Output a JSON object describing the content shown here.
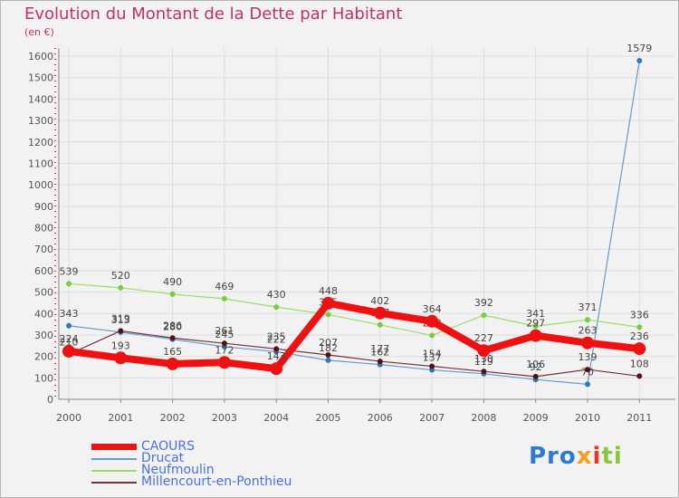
{
  "header": {
    "title": "Evolution du Montant de la Dette par Habitant",
    "unit": "(en €)"
  },
  "logo": {
    "letters": [
      "Pro",
      "x",
      "i",
      "ti"
    ],
    "colors": [
      "#2c7bd0",
      "#f0a020",
      "#e23a2a",
      "#8cc43c"
    ]
  },
  "chart_data": {
    "type": "line",
    "x": [
      "2000",
      "2001",
      "2002",
      "2003",
      "2004",
      "2005",
      "2006",
      "2007",
      "2008",
      "2009",
      "2010",
      "2011"
    ],
    "ylim": [
      0,
      1600
    ],
    "yticks": [
      0,
      100,
      200,
      300,
      400,
      500,
      600,
      700,
      800,
      900,
      1000,
      1100,
      1200,
      1300,
      1400,
      1500,
      1600
    ],
    "grid": true,
    "legend_position": "bottom-left",
    "series": [
      {
        "name": "CAOURS",
        "color": "#ee1111",
        "width": 8,
        "values": [
          224,
          193,
          165,
          172,
          143,
          448,
          402,
          364,
          227,
          297,
          263,
          236
        ]
      },
      {
        "name": "Drucat",
        "color": "#6699cc",
        "width": 1.2,
        "values": [
          343,
          313,
          280,
          245,
          222,
          182,
          162,
          137,
          119,
          92,
          70,
          1579
        ]
      },
      {
        "name": "Neufmoulin",
        "color": "#99dd66",
        "width": 1.2,
        "values": [
          539,
          520,
          490,
          469,
          430,
          395,
          347,
          298,
          392,
          341,
          371,
          336
        ]
      },
      {
        "name": "Millencourt-en-Ponthieu",
        "color": "#773333",
        "width": 1.2,
        "values": [
          210,
          319,
          286,
          261,
          235,
          207,
          177,
          154,
          130,
          106,
          139,
          108
        ]
      }
    ]
  }
}
